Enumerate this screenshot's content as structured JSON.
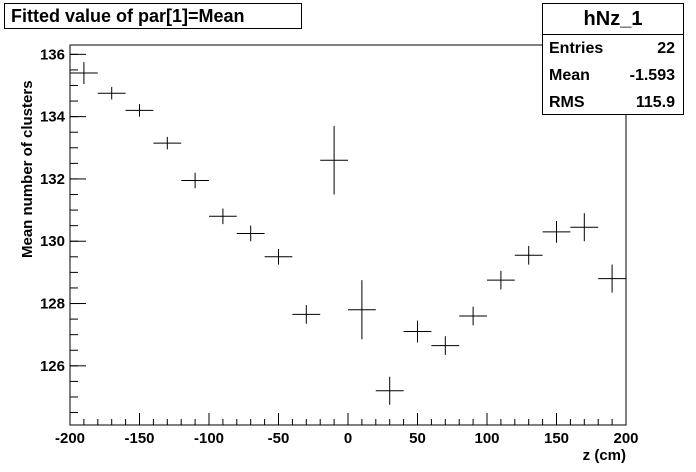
{
  "title": "Fitted value of par[1]=Mean",
  "stats": {
    "name": "hNz_1",
    "rows": [
      {
        "label": "Entries",
        "value": "22"
      },
      {
        "label": "Mean",
        "value": "-1.593"
      },
      {
        "label": "RMS",
        "value": "115.9"
      }
    ]
  },
  "chart_data": {
    "type": "scatter",
    "xlabel": "z (cm)",
    "ylabel": "Mean number of clusters",
    "xlim": [
      -200,
      200
    ],
    "ylim": [
      124.1,
      136.3
    ],
    "x_ticks": [
      -200,
      -150,
      -100,
      -50,
      0,
      50,
      100,
      150,
      200
    ],
    "y_ticks": [
      126,
      128,
      130,
      132,
      134,
      136
    ],
    "x_bin_half_width": 10,
    "points": [
      {
        "x": -190,
        "y": 135.4,
        "yerr": 0.35
      },
      {
        "x": -170,
        "y": 134.75,
        "yerr": 0.2
      },
      {
        "x": -150,
        "y": 134.2,
        "yerr": 0.2
      },
      {
        "x": -130,
        "y": 133.15,
        "yerr": 0.2
      },
      {
        "x": -110,
        "y": 131.95,
        "yerr": 0.25
      },
      {
        "x": -90,
        "y": 130.8,
        "yerr": 0.25
      },
      {
        "x": -70,
        "y": 130.25,
        "yerr": 0.25
      },
      {
        "x": -50,
        "y": 129.5,
        "yerr": 0.25
      },
      {
        "x": -30,
        "y": 127.65,
        "yerr": 0.3
      },
      {
        "x": -10,
        "y": 132.6,
        "yerr": 1.1
      },
      {
        "x": 10,
        "y": 127.8,
        "yerr": 0.95
      },
      {
        "x": 30,
        "y": 125.2,
        "yerr": 0.45
      },
      {
        "x": 50,
        "y": 127.1,
        "yerr": 0.35
      },
      {
        "x": 70,
        "y": 126.65,
        "yerr": 0.3
      },
      {
        "x": 90,
        "y": 127.6,
        "yerr": 0.3
      },
      {
        "x": 110,
        "y": 128.75,
        "yerr": 0.3
      },
      {
        "x": 130,
        "y": 129.55,
        "yerr": 0.3
      },
      {
        "x": 150,
        "y": 130.3,
        "yerr": 0.35
      },
      {
        "x": 170,
        "y": 130.45,
        "yerr": 0.45
      },
      {
        "x": 190,
        "y": 128.8,
        "yerr": 0.45
      }
    ]
  }
}
